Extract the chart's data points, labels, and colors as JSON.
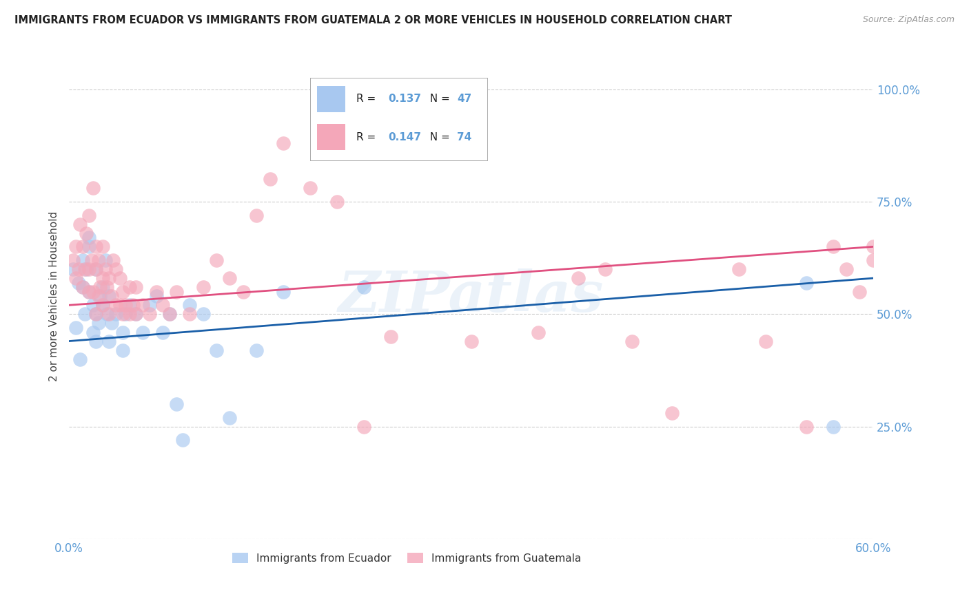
{
  "title": "IMMIGRANTS FROM ECUADOR VS IMMIGRANTS FROM GUATEMALA 2 OR MORE VEHICLES IN HOUSEHOLD CORRELATION CHART",
  "source": "Source: ZipAtlas.com",
  "ylabel": "2 or more Vehicles in Household",
  "legend_label_blue": "Immigrants from Ecuador",
  "legend_label_pink": "Immigrants from Guatemala",
  "r_blue": 0.137,
  "n_blue": 47,
  "r_pink": 0.147,
  "n_pink": 74,
  "xlim": [
    0.0,
    0.6
  ],
  "ylim": [
    0.0,
    1.08
  ],
  "xtick_positions": [
    0.0,
    0.6
  ],
  "xticklabels": [
    "0.0%",
    "60.0%"
  ],
  "yticks": [
    0.0,
    0.25,
    0.5,
    0.75,
    1.0
  ],
  "yticklabels": [
    "",
    "25.0%",
    "50.0%",
    "75.0%",
    "100.0%"
  ],
  "color_blue": "#A8C8F0",
  "color_pink": "#F4A7B9",
  "color_line_blue": "#1A5FA8",
  "color_line_pink": "#E05080",
  "color_axis_labels": "#5B9BD5",
  "watermark": "ZIPatlas",
  "ecuador_x": [
    0.003,
    0.005,
    0.007,
    0.008,
    0.01,
    0.01,
    0.012,
    0.013,
    0.015,
    0.015,
    0.015,
    0.018,
    0.018,
    0.02,
    0.02,
    0.02,
    0.022,
    0.023,
    0.025,
    0.025,
    0.027,
    0.028,
    0.03,
    0.03,
    0.032,
    0.035,
    0.04,
    0.04,
    0.042,
    0.045,
    0.05,
    0.055,
    0.06,
    0.065,
    0.07,
    0.075,
    0.08,
    0.085,
    0.09,
    0.1,
    0.11,
    0.12,
    0.14,
    0.16,
    0.22,
    0.55,
    0.57
  ],
  "ecuador_y": [
    0.6,
    0.47,
    0.57,
    0.4,
    0.56,
    0.62,
    0.5,
    0.6,
    0.55,
    0.65,
    0.67,
    0.46,
    0.52,
    0.44,
    0.5,
    0.6,
    0.48,
    0.54,
    0.52,
    0.56,
    0.62,
    0.5,
    0.44,
    0.54,
    0.48,
    0.5,
    0.42,
    0.46,
    0.5,
    0.52,
    0.5,
    0.46,
    0.52,
    0.54,
    0.46,
    0.5,
    0.3,
    0.22,
    0.52,
    0.5,
    0.42,
    0.27,
    0.42,
    0.55,
    0.56,
    0.57,
    0.25
  ],
  "guatemala_x": [
    0.003,
    0.005,
    0.005,
    0.007,
    0.008,
    0.01,
    0.01,
    0.012,
    0.013,
    0.015,
    0.015,
    0.015,
    0.017,
    0.018,
    0.018,
    0.02,
    0.02,
    0.02,
    0.022,
    0.022,
    0.023,
    0.025,
    0.025,
    0.025,
    0.027,
    0.028,
    0.03,
    0.03,
    0.032,
    0.033,
    0.035,
    0.035,
    0.038,
    0.038,
    0.04,
    0.04,
    0.042,
    0.045,
    0.045,
    0.048,
    0.05,
    0.05,
    0.055,
    0.06,
    0.065,
    0.07,
    0.075,
    0.08,
    0.09,
    0.1,
    0.11,
    0.12,
    0.13,
    0.14,
    0.15,
    0.16,
    0.18,
    0.2,
    0.22,
    0.24,
    0.3,
    0.35,
    0.38,
    0.4,
    0.42,
    0.45,
    0.5,
    0.52,
    0.55,
    0.57,
    0.58,
    0.59,
    0.6,
    0.6
  ],
  "guatemala_y": [
    0.62,
    0.58,
    0.65,
    0.6,
    0.7,
    0.56,
    0.65,
    0.6,
    0.68,
    0.55,
    0.6,
    0.72,
    0.62,
    0.55,
    0.78,
    0.5,
    0.6,
    0.65,
    0.54,
    0.62,
    0.56,
    0.52,
    0.58,
    0.65,
    0.6,
    0.56,
    0.5,
    0.58,
    0.54,
    0.62,
    0.52,
    0.6,
    0.52,
    0.58,
    0.5,
    0.55,
    0.52,
    0.5,
    0.56,
    0.52,
    0.5,
    0.56,
    0.52,
    0.5,
    0.55,
    0.52,
    0.5,
    0.55,
    0.5,
    0.56,
    0.62,
    0.58,
    0.55,
    0.72,
    0.8,
    0.88,
    0.78,
    0.75,
    0.25,
    0.45,
    0.44,
    0.46,
    0.58,
    0.6,
    0.44,
    0.28,
    0.6,
    0.44,
    0.25,
    0.65,
    0.6,
    0.55,
    0.65,
    0.62
  ],
  "line_blue_x0": 0.0,
  "line_blue_y0": 0.44,
  "line_blue_x1": 0.6,
  "line_blue_y1": 0.58,
  "line_pink_x0": 0.0,
  "line_pink_y0": 0.52,
  "line_pink_x1": 0.6,
  "line_pink_y1": 0.65
}
